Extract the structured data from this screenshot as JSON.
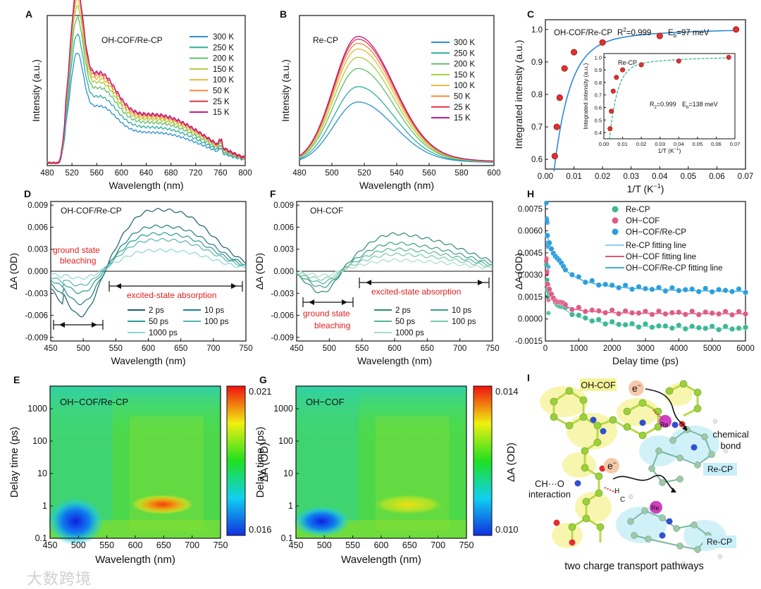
{
  "colors": {
    "temp": [
      "#2f8fd0",
      "#2fae9c",
      "#63bd6b",
      "#a8cd3e",
      "#e6b93a",
      "#f08a3e",
      "#e0354a",
      "#c0167e"
    ],
    "ta_A": [
      "#1b5f6e",
      "#1f7f84",
      "#2c9a95",
      "#55b5ad",
      "#8fd6cc"
    ],
    "ta_F": [
      "#2e8a72",
      "#3d9e84",
      "#56b498",
      "#7cc8af",
      "#a7dcc8"
    ],
    "kin": {
      "recp": "#3cb98f",
      "ohcof": "#e05b85",
      "both": "#2a9fe0",
      "fit_recp": "#7fc8ee",
      "fit_ohcof": "#e0405a",
      "fit_both": "#2aa5c8"
    },
    "red_text": "#e02020"
  },
  "panels": {
    "A": {
      "letter": "A",
      "label": "OH-COF/Re-CP",
      "xlabel": "Wavelength (nm)",
      "ylabel": "Intensity (a.u.)"
    },
    "B": {
      "letter": "B",
      "label": "Re-CP",
      "xlabel": "Wavelength (nm)",
      "ylabel": "Intensity (a.u.)"
    },
    "C": {
      "letter": "C",
      "label": "OH-COF/Re-CP",
      "r2": "R",
      "eb": "E",
      "xlabel": "1/T (K",
      "ylabel": "Integrated intensity (a.u.)",
      "inset_label": "Re-CP",
      "inset_r2": "R",
      "inset_eb": "E",
      "inset_xlabel": "1/T (K",
      "inset_ylabel": "Integrated intensity (a.u.)"
    },
    "D": {
      "letter": "D",
      "label": "OH-COF/Re-CP",
      "xlabel": "Wavelength (nm)",
      "ylabel": "ΔA (OD)",
      "ann1": "ground state",
      "ann2": "bleaching",
      "ann3": "excited-state absorption"
    },
    "F": {
      "letter": "F",
      "label": "OH-COF",
      "xlabel": "Wavelength (nm)",
      "ylabel": "ΔA (OD)",
      "ann1": "ground state",
      "ann2": "bleaching",
      "ann3": "excited-state absorption"
    },
    "H": {
      "letter": "H",
      "xlabel": "Delay time (ps)",
      "ylabel": "ΔA (OD)"
    },
    "E": {
      "letter": "E",
      "label": "OH−COF/Re-CP",
      "xlabel": "Wavelength (nm)",
      "ylabel": "Delay time (ps)",
      "cbar_label": "ΔA (OD)",
      "cbar_max": "0.021",
      "cbar_min": "0.016"
    },
    "G": {
      "letter": "G",
      "label": "OH−COF",
      "xlabel": "Wavelength (nm)",
      "ylabel": "Delay time (ps)",
      "cbar_label": "ΔA (OD)",
      "cbar_max": "0.014",
      "cbar_min": "0.010"
    },
    "I": {
      "letter": "I",
      "ohcof": "OH-COF",
      "e1": "e",
      "e2": "e",
      "re1": "Re",
      "re2": "Re",
      "bond1": "chemical",
      "bond2": "bond",
      "recp1": "Re-CP",
      "recp2": "Re-CP",
      "ch1": "CH···O",
      "ch2": "interaction",
      "h": "H",
      "c": "C",
      "caption": "two charge transport pathways"
    }
  },
  "watermark": "大数跨境",
  "chart_data": [
    {
      "id": "A",
      "type": "line",
      "title": "",
      "xlabel": "Wavelength (nm)",
      "ylabel": "Intensity (a.u.)",
      "xlim": [
        480,
        800
      ],
      "xticks": [
        480,
        520,
        560,
        600,
        640,
        680,
        720,
        760,
        800
      ],
      "legend_position": "top-right",
      "series": [
        {
          "name": "300 K",
          "peak": 0.6
        },
        {
          "name": "250 K",
          "peak": 0.7
        },
        {
          "name": "200 K",
          "peak": 0.79
        },
        {
          "name": "150 K",
          "peak": 0.85
        },
        {
          "name": "100 K",
          "peak": 0.89
        },
        {
          "name": "50 K",
          "peak": 0.92
        },
        {
          "name": "25 K",
          "peak": 0.94
        },
        {
          "name": "15 K",
          "peak": 0.95
        }
      ]
    },
    {
      "id": "B",
      "type": "line",
      "title": "",
      "xlabel": "Wavelength (nm)",
      "ylabel": "Intensity (a.u.)",
      "xlim": [
        480,
        600
      ],
      "xticks": [
        480,
        500,
        520,
        540,
        560,
        580,
        600
      ],
      "legend_position": "top-right",
      "series": [
        {
          "name": "300 K",
          "peak": 0.44
        },
        {
          "name": "250 K",
          "peak": 0.55
        },
        {
          "name": "200 K",
          "peak": 0.68
        },
        {
          "name": "150 K",
          "peak": 0.76
        },
        {
          "name": "100 K",
          "peak": 0.82
        },
        {
          "name": "50 K",
          "peak": 0.86
        },
        {
          "name": "25 K",
          "peak": 0.89
        },
        {
          "name": "15 K",
          "peak": 0.91
        }
      ]
    },
    {
      "id": "C",
      "type": "scatter",
      "xlabel": "1/T (K⁻¹)",
      "ylabel": "Integrated intensity (a.u.)",
      "xlim": [
        0,
        0.07
      ],
      "ylim": [
        0.57,
        1.03
      ],
      "xticks": [
        0.0,
        0.01,
        0.02,
        0.03,
        0.04,
        0.05,
        0.06,
        0.07
      ],
      "yticks": [
        0.6,
        0.7,
        0.8,
        0.9,
        1.0
      ],
      "r2": "0.999",
      "eb_meV": "97",
      "x": [
        0.0033,
        0.004,
        0.005,
        0.0067,
        0.01,
        0.02,
        0.04,
        0.0667
      ],
      "y": [
        0.61,
        0.7,
        0.79,
        0.88,
        0.93,
        0.96,
        0.98,
        1.0
      ],
      "inset": {
        "xlim": [
          0,
          0.07
        ],
        "ylim": [
          0.35,
          1.03
        ],
        "xticks": [
          0.0,
          0.01,
          0.02,
          0.03,
          0.04,
          0.05,
          0.06,
          0.07
        ],
        "yticks": [
          0.4,
          0.5,
          0.6,
          0.7,
          0.8,
          0.9,
          1.0
        ],
        "r2": "0.999",
        "eb_meV": "138",
        "x": [
          0.0033,
          0.004,
          0.005,
          0.0067,
          0.01,
          0.02,
          0.04,
          0.0667
        ],
        "y": [
          0.43,
          0.57,
          0.73,
          0.84,
          0.9,
          0.94,
          0.97,
          1.0
        ]
      }
    },
    {
      "id": "D",
      "type": "line",
      "xlabel": "Wavelength (nm)",
      "ylabel": "ΔA (OD)",
      "xlim": [
        450,
        750
      ],
      "ylim": [
        -0.0095,
        0.0095
      ],
      "xticks": [
        450,
        500,
        550,
        600,
        650,
        700,
        750
      ],
      "yticks": [
        -0.009,
        -0.006,
        -0.003,
        0.0,
        0.003,
        0.006,
        0.009
      ],
      "series": [
        {
          "name": "2 ps",
          "bleach": -0.0062,
          "esa": 0.0082
        },
        {
          "name": "10 ps",
          "bleach": -0.0045,
          "esa": 0.006
        },
        {
          "name": "50 ps",
          "bleach": -0.003,
          "esa": 0.005
        },
        {
          "name": "100 ps",
          "bleach": -0.002,
          "esa": 0.0042
        },
        {
          "name": "1000 ps",
          "bleach": -0.001,
          "esa": 0.0028
        }
      ]
    },
    {
      "id": "F",
      "type": "line",
      "xlabel": "Wavelength (nm)",
      "ylabel": "ΔA (OD)",
      "xlim": [
        450,
        750
      ],
      "ylim": [
        -0.0095,
        0.0095
      ],
      "xticks": [
        450,
        500,
        550,
        600,
        650,
        700,
        750
      ],
      "yticks": [
        -0.009,
        -0.006,
        -0.003,
        0.0,
        0.003,
        0.006,
        0.009
      ],
      "series": [
        {
          "name": "2 ps",
          "bleach": -0.003,
          "esa": 0.0044
        },
        {
          "name": "10 ps",
          "bleach": -0.0022,
          "esa": 0.0033
        },
        {
          "name": "50 ps",
          "bleach": -0.0016,
          "esa": 0.0026
        },
        {
          "name": "100 ps",
          "bleach": -0.0011,
          "esa": 0.002
        },
        {
          "name": "1000 ps",
          "bleach": -0.0006,
          "esa": 0.0013
        }
      ]
    },
    {
      "id": "H",
      "type": "scatter",
      "xlabel": "Delay time (ps)",
      "ylabel": "ΔA (OD)",
      "xlim": [
        0,
        6000
      ],
      "ylim": [
        -0.0015,
        0.008
      ],
      "xticks": [
        0,
        1000,
        2000,
        3000,
        4000,
        5000,
        6000
      ],
      "yticks": [
        -0.0015,
        0.0,
        0.0015,
        0.003,
        0.0045,
        0.006,
        0.0075
      ],
      "series": [
        {
          "name": "Re-CP",
          "amp": 0.002,
          "tau": 600,
          "offset": -0.0007
        },
        {
          "name": "OH−COF",
          "amp": 0.0016,
          "tau": 250,
          "offset": 0.0004
        },
        {
          "name": "OH−COF/Re-CP",
          "amp": 0.003,
          "tau": 400,
          "offset": 0.0019
        }
      ],
      "fits": [
        {
          "name": "Re-CP fitting line"
        },
        {
          "name": "OH−COF fitting line"
        },
        {
          "name": "OH−COF/Re-CP fitting line"
        }
      ]
    },
    {
      "id": "E",
      "type": "heatmap",
      "xlabel": "Wavelength (nm)",
      "ylabel": "Delay time (ps)",
      "xlim": [
        450,
        750
      ],
      "xticks": [
        450,
        500,
        550,
        600,
        650,
        700,
        750
      ],
      "yticks_labels": [
        "0.1",
        "1",
        "10",
        "100",
        "1000"
      ],
      "ylog": true,
      "colorbar": {
        "min": 0.016,
        "max": 0.021
      }
    },
    {
      "id": "G",
      "type": "heatmap",
      "xlabel": "Wavelength (nm)",
      "ylabel": "Delay time (ps)",
      "xlim": [
        450,
        750
      ],
      "xticks": [
        450,
        500,
        550,
        600,
        650,
        700,
        750
      ],
      "yticks_labels": [
        "0.1",
        "1",
        "10",
        "100",
        "1000"
      ],
      "ylog": true,
      "colorbar": {
        "min": 0.01,
        "max": 0.014
      }
    }
  ]
}
